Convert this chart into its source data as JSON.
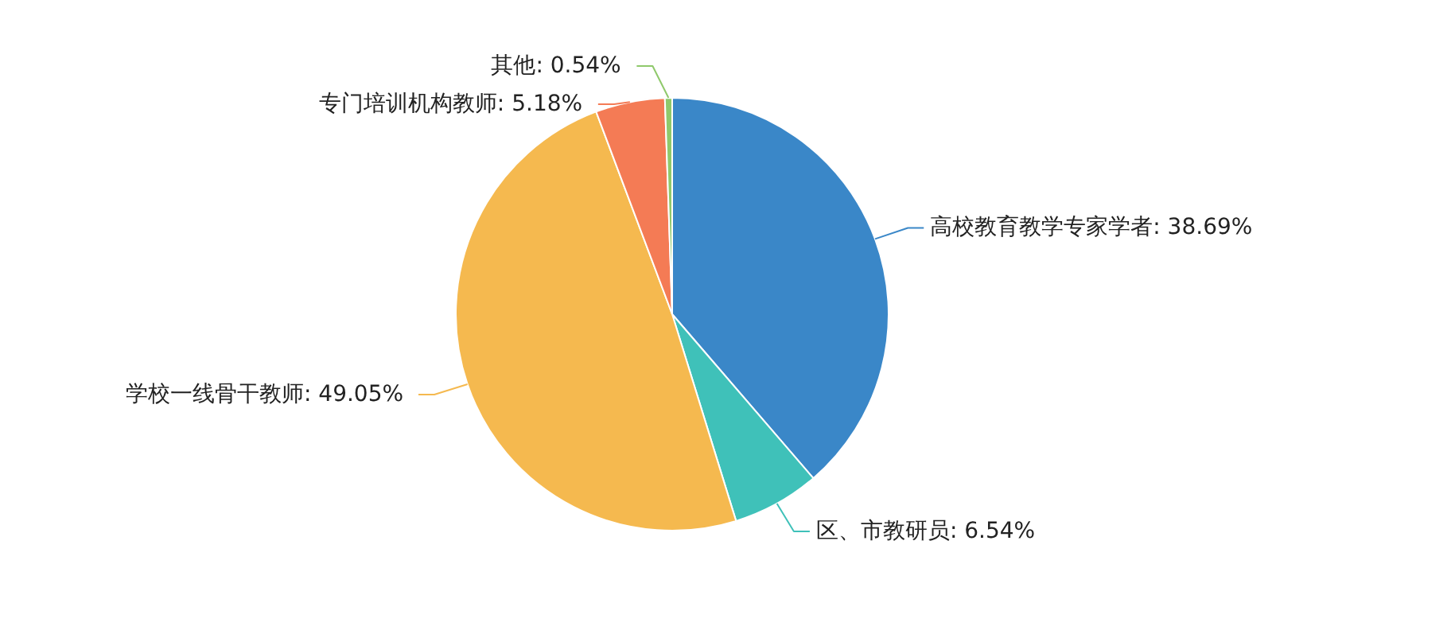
{
  "chart_data": {
    "type": "pie",
    "categories": [
      "高校教育教学专家学者",
      "区、市教研员",
      "学校一线骨干教师",
      "专门培训机构教师",
      "其他"
    ],
    "values": [
      38.69,
      6.54,
      49.05,
      5.18,
      0.54
    ],
    "colors": [
      "#3a87c8",
      "#3fc1b9",
      "#f5b94f",
      "#f47b55",
      "#8fc96b"
    ],
    "value_labels": [
      ": 38.69%",
      ": 6.54%",
      ": 49.05%",
      ": 5.18%",
      ": 0.54%"
    ]
  }
}
